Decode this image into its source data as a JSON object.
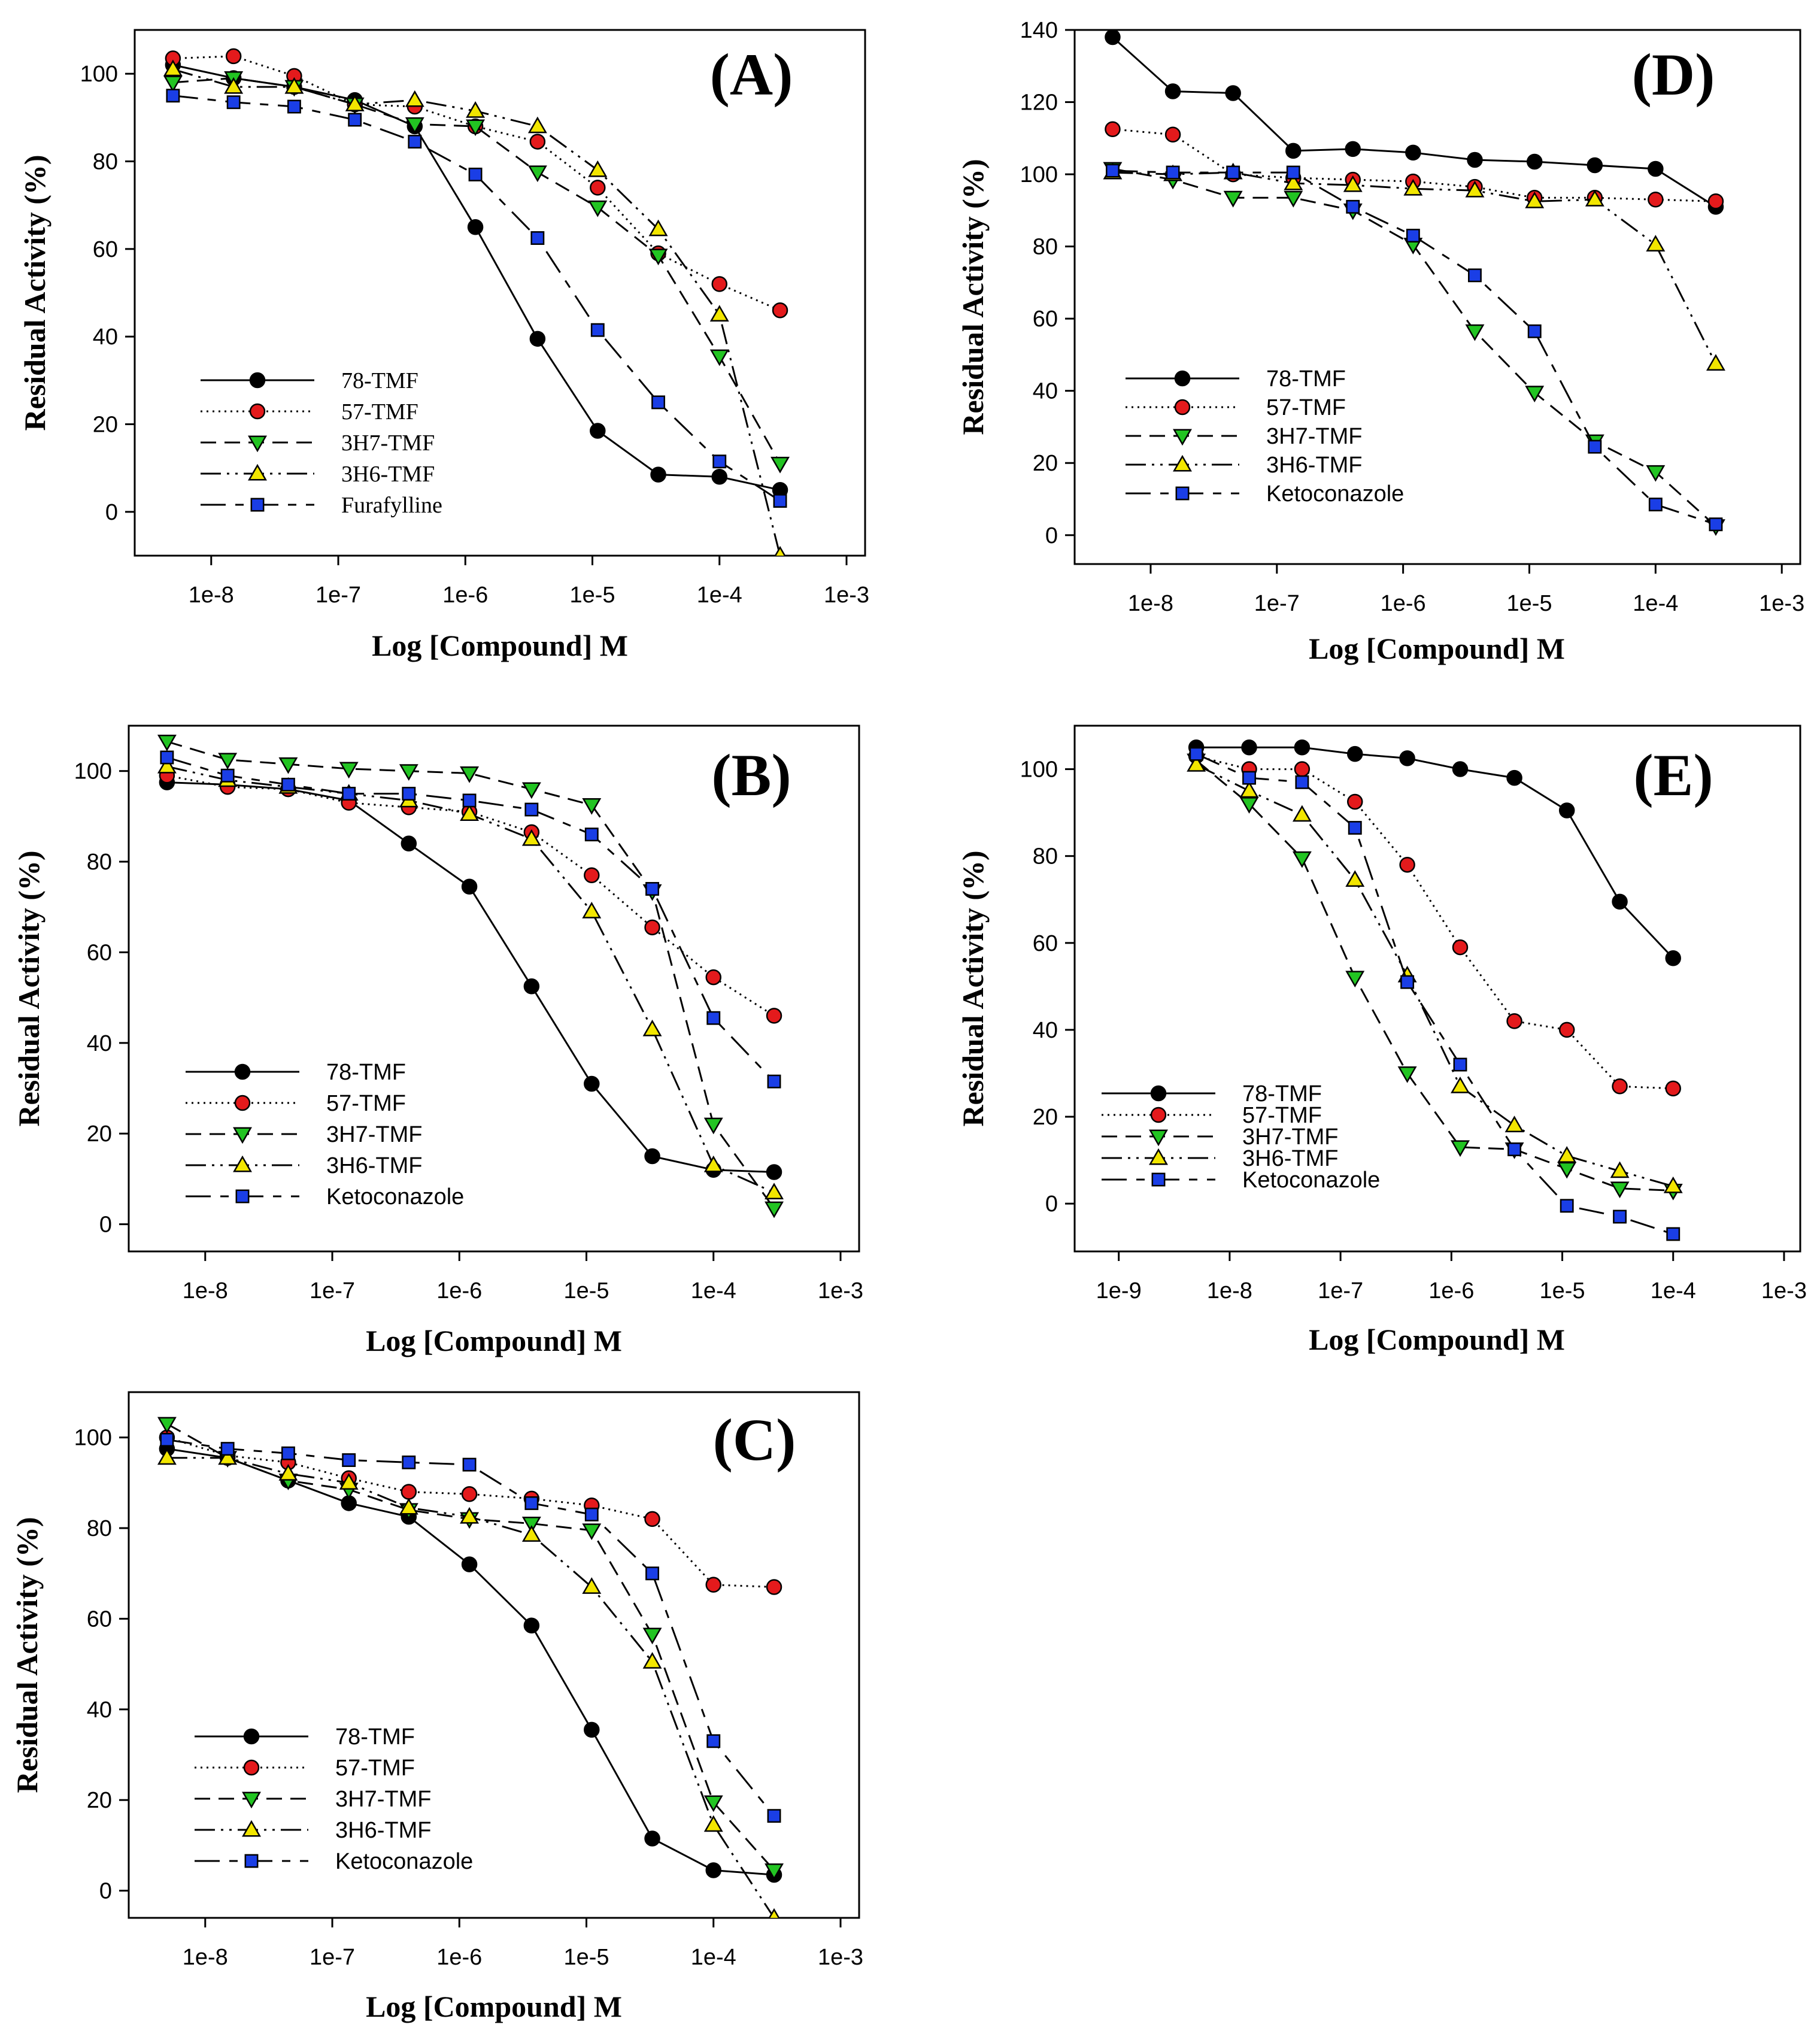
{
  "colors": {
    "black_marker": "#000000",
    "red_marker": "#e41a1c",
    "green_marker": "#22c422",
    "yellow_marker": "#f2e600",
    "blue_marker": "#1a3ee6"
  },
  "marker_icons": {
    "78-TMF": "filled-circle-black",
    "57-TMF": "filled-circle-red",
    "3H7-TMF": "triangle-down-green",
    "3H6-TMF": "triangle-up-yellow",
    "reference": "filled-square-blue"
  },
  "chart_data": [
    {
      "id": "A",
      "type": "line",
      "title": "(A)",
      "xlabel": "Log [Compound] M",
      "ylabel": "Residual Activity (%)",
      "xscale": "log",
      "xlim": [
        2.5e-09,
        0.0014
      ],
      "ylim": [
        -10,
        110
      ],
      "yticks": [
        0,
        20,
        40,
        60,
        80,
        100
      ],
      "xticks": [
        1e-08,
        1e-07,
        1e-06,
        1e-05,
        0.0001,
        0.001
      ],
      "xtick_labels": [
        "1e-8",
        "1e-7",
        "1e-6",
        "1e-5",
        "1e-4",
        "1e-3"
      ],
      "legend_position": "bottom-left",
      "legend_font": "serif",
      "x": [
        5e-09,
        1.5e-08,
        4.5e-08,
        1.35e-07,
        4e-07,
        1.2e-06,
        3.7e-06,
        1.1e-05,
        3.3e-05,
        0.0001,
        0.0003
      ],
      "series": [
        {
          "name": "78-TMF",
          "values": [
            102,
            99,
            97,
            94,
            88,
            65,
            39.5,
            18.5,
            8.5,
            8,
            5
          ]
        },
        {
          "name": "57-TMF",
          "values": [
            103.5,
            104,
            99.5,
            93,
            92.5,
            88,
            84.5,
            74,
            59,
            52,
            46
          ]
        },
        {
          "name": "3H7-TMF",
          "values": [
            98,
            99,
            97,
            93,
            88.5,
            88,
            77.5,
            69.5,
            58.5,
            35.5,
            11
          ]
        },
        {
          "name": "3H6-TMF",
          "values": [
            101,
            97,
            97,
            93,
            94,
            91.5,
            88,
            78,
            64.5,
            45,
            -10
          ]
        },
        {
          "name": "Furafylline",
          "values": [
            95,
            93.5,
            92.5,
            89.5,
            84.5,
            77,
            62.5,
            41.5,
            25,
            11.5,
            2.5
          ]
        }
      ]
    },
    {
      "id": "B",
      "type": "line",
      "title": "(B)",
      "xlabel": "Log [Compound] M",
      "ylabel": "Residual Activity (%)",
      "xscale": "log",
      "xlim": [
        2.5e-09,
        0.0014
      ],
      "ylim": [
        -6,
        110
      ],
      "yticks": [
        0,
        20,
        40,
        60,
        80,
        100
      ],
      "xticks": [
        1e-08,
        1e-07,
        1e-06,
        1e-05,
        0.0001,
        0.001
      ],
      "xtick_labels": [
        "1e-8",
        "1e-7",
        "1e-6",
        "1e-5",
        "1e-4",
        "1e-3"
      ],
      "legend_position": "bottom-left",
      "legend_font": "sans",
      "x": [
        5e-09,
        1.5e-08,
        4.5e-08,
        1.35e-07,
        4e-07,
        1.2e-06,
        3.7e-06,
        1.1e-05,
        3.3e-05,
        0.0001,
        0.0003
      ],
      "series": [
        {
          "name": "78-TMF",
          "values": [
            97.5,
            97,
            96,
            93.5,
            84,
            74.5,
            52.5,
            31,
            15,
            12,
            11.5
          ]
        },
        {
          "name": "57-TMF",
          "values": [
            99,
            96.5,
            96,
            93,
            92,
            91,
            86.5,
            77,
            65.5,
            54.5,
            46
          ]
        },
        {
          "name": "3H7-TMF",
          "values": [
            106.5,
            102.5,
            101.5,
            100.5,
            100,
            99.5,
            96,
            92.5,
            73.5,
            22,
            3.5
          ]
        },
        {
          "name": "3H6-TMF",
          "values": [
            101,
            98,
            96.5,
            95,
            93.5,
            90.5,
            85,
            69,
            43,
            13,
            7
          ]
        },
        {
          "name": "Ketoconazole",
          "values": [
            103,
            99,
            97,
            95,
            95,
            93.5,
            91.5,
            86,
            74,
            45.5,
            31.5
          ]
        }
      ]
    },
    {
      "id": "C",
      "type": "line",
      "title": "(C)",
      "xlabel": "Log [Compound] M",
      "ylabel": "Residual Activity (%)",
      "xscale": "log",
      "xlim": [
        2.5e-09,
        0.0014
      ],
      "ylim": [
        -6,
        110
      ],
      "yticks": [
        0,
        20,
        40,
        60,
        80,
        100
      ],
      "xticks": [
        1e-08,
        1e-07,
        1e-06,
        1e-05,
        0.0001,
        0.001
      ],
      "xtick_labels": [
        "1e-8",
        "1e-7",
        "1e-6",
        "1e-5",
        "1e-4",
        "1e-3"
      ],
      "legend_position": "bottom-left",
      "legend_font": "sans",
      "x": [
        5e-09,
        1.5e-08,
        4.5e-08,
        1.35e-07,
        4e-07,
        1.2e-06,
        3.7e-06,
        1.1e-05,
        3.3e-05,
        0.0001,
        0.0003
      ],
      "series": [
        {
          "name": "78-TMF",
          "values": [
            97.5,
            95.5,
            90.5,
            85.5,
            82.5,
            72,
            58.5,
            35.5,
            11.5,
            4.5,
            3.5
          ]
        },
        {
          "name": "57-TMF",
          "values": [
            100,
            96,
            94.5,
            91,
            88,
            87.5,
            86.5,
            85,
            82,
            67.5,
            67
          ]
        },
        {
          "name": "3H7-TMF",
          "values": [
            103,
            95.5,
            90.5,
            88.5,
            84,
            82,
            81,
            79.5,
            56.5,
            19.5,
            4.5
          ]
        },
        {
          "name": "3H6-TMF",
          "values": [
            95.5,
            95.5,
            92,
            90,
            84.5,
            82.5,
            78.5,
            67,
            50.5,
            14.5,
            -6
          ]
        },
        {
          "name": "Ketoconazole",
          "values": [
            99.5,
            97.5,
            96.5,
            95,
            94.5,
            94,
            85.5,
            83,
            70,
            33,
            16.5
          ]
        }
      ]
    },
    {
      "id": "D",
      "type": "line",
      "title": "(D)",
      "xlabel": "Log [Compound] M",
      "ylabel": "Residual Activity (%)",
      "xscale": "log",
      "xlim": [
        2.5e-09,
        0.0014
      ],
      "ylim": [
        -8,
        140
      ],
      "yticks": [
        0,
        20,
        40,
        60,
        80,
        100,
        120,
        140
      ],
      "xticks": [
        1e-08,
        1e-07,
        1e-06,
        1e-05,
        0.0001,
        0.001
      ],
      "xtick_labels": [
        "1e-8",
        "1e-7",
        "1e-6",
        "1e-5",
        "1e-4",
        "1e-3"
      ],
      "legend_position": "bottom-left",
      "legend_font": "sans",
      "x": [
        5e-09,
        1.5e-08,
        4.5e-08,
        1.35e-07,
        4e-07,
        1.2e-06,
        3.7e-06,
        1.1e-05,
        3.3e-05,
        0.0001,
        0.0003
      ],
      "series": [
        {
          "name": "78-TMF",
          "values": [
            138,
            123,
            122.5,
            106.5,
            107,
            106,
            104,
            103.5,
            102.5,
            101.5,
            91
          ]
        },
        {
          "name": "57-TMF",
          "values": [
            112.5,
            111,
            100,
            99,
            98.5,
            98,
            96.5,
            93.5,
            93.5,
            93,
            92.5
          ]
        },
        {
          "name": "3H7-TMF",
          "values": [
            101.5,
            98.5,
            93.5,
            93.5,
            90,
            80.5,
            56.5,
            39.5,
            26,
            17.5,
            2.5
          ]
        },
        {
          "name": "3H6-TMF",
          "values": [
            100.5,
            100,
            100.5,
            97.5,
            97,
            96,
            95.5,
            92.5,
            93,
            80.5,
            47.5
          ]
        },
        {
          "name": "Ketoconazole",
          "values": [
            101,
            100.5,
            100.5,
            100.5,
            91,
            83,
            72,
            56.5,
            24.5,
            8.5,
            3
          ]
        }
      ]
    },
    {
      "id": "E",
      "type": "line",
      "title": "(E)",
      "xlabel": "Log [Compound] M",
      "ylabel": "Residual Activity (%)",
      "xscale": "log",
      "xlim": [
        4e-10,
        0.0014
      ],
      "ylim": [
        -11,
        110
      ],
      "yticks": [
        0,
        20,
        40,
        60,
        80,
        100
      ],
      "xticks": [
        1e-09,
        1e-08,
        1e-07,
        1e-06,
        1e-05,
        0.0001,
        0.001
      ],
      "xtick_labels": [
        "1e-9",
        "1e-8",
        "1e-7",
        "1e-6",
        "1e-5",
        "1e-4",
        "1e-3"
      ],
      "legend_position": "bottom-left",
      "legend_font": "sans",
      "x": [
        5e-09,
        1.5e-08,
        4.5e-08,
        1.35e-07,
        4e-07,
        1.2e-06,
        3.7e-06,
        1.1e-05,
        3.3e-05,
        0.0001
      ],
      "series": [
        {
          "name": "78-TMF",
          "values": [
            105,
            105,
            105,
            103.5,
            102.5,
            100,
            98,
            90.5,
            69.5,
            56.5
          ]
        },
        {
          "name": "57-TMF",
          "values": [
            103,
            100,
            100,
            92.5,
            78,
            59,
            42,
            40,
            27,
            26.5
          ]
        },
        {
          "name": "3H7-TMF",
          "values": [
            102,
            92,
            79.5,
            52,
            30,
            13,
            12.5,
            8,
            3.5,
            3
          ]
        },
        {
          "name": "3H6-TMF",
          "values": [
            101,
            95,
            89.5,
            74.5,
            52.5,
            27,
            18,
            11,
            7.5,
            4
          ]
        },
        {
          "name": "Ketoconazole",
          "values": [
            103.5,
            98,
            97,
            86.5,
            51,
            32,
            12.5,
            -0.5,
            -3,
            -7
          ]
        }
      ]
    }
  ]
}
